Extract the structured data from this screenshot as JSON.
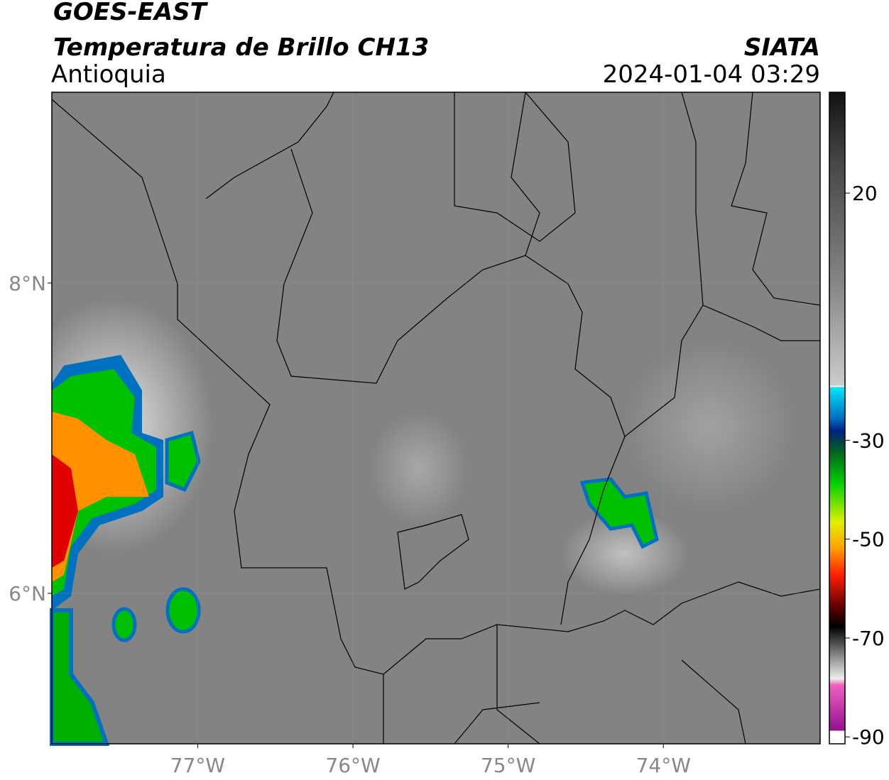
{
  "header": {
    "title": "GOES-EAST",
    "subtitle": "Temperatura de Brillo CH13",
    "region": "Antioquia",
    "source": "SIATA",
    "datetime": "2024-01-04 03:29"
  },
  "map": {
    "lon_range": [
      -77.94,
      -72.99
    ],
    "lat_range": [
      5.03,
      9.23
    ],
    "lon_ticks": [
      {
        "value": -77,
        "label": "77°W"
      },
      {
        "value": -76,
        "label": "76°W"
      },
      {
        "value": -75,
        "label": "75°W"
      },
      {
        "value": -74,
        "label": "74°W"
      }
    ],
    "lat_ticks": [
      {
        "value": 8,
        "label": "8°N"
      },
      {
        "value": 6,
        "label": "6°N"
      }
    ]
  },
  "colorbar": {
    "range": [
      -91.4,
      40.4
    ],
    "ticks": [
      20,
      -30,
      -50,
      -70,
      -90
    ]
  }
}
